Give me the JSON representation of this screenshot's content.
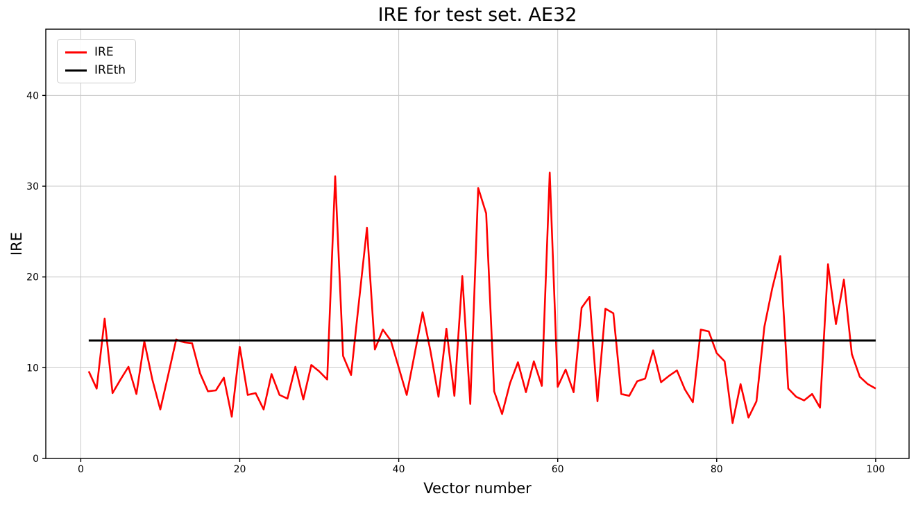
{
  "chart_data": {
    "type": "line",
    "title": "IRE for test set. AE32",
    "xlabel": "Vector number",
    "ylabel": "IRE",
    "xlim": [
      -4.4,
      104.2
    ],
    "ylim": [
      0,
      47.3
    ],
    "xticks": [
      0,
      20,
      40,
      60,
      80,
      100
    ],
    "yticks": [
      0,
      10,
      20,
      30,
      40
    ],
    "grid": true,
    "grid_color": "#c8c8c8",
    "axis_color": "#000000",
    "background": "#ffffff",
    "legend": {
      "position": "upper-left",
      "entries": [
        {
          "label": "IRE",
          "color": "#ff0000",
          "line_width": 3
        },
        {
          "label": "IREth",
          "color": "#000000",
          "line_width": 3
        }
      ]
    },
    "series": [
      {
        "name": "IRE",
        "type": "line",
        "color": "#ff0000",
        "line_width": 2.6,
        "x_start": 1,
        "x_step": 1,
        "values": [
          9.6,
          7.7,
          15.4,
          7.2,
          8.7,
          10.1,
          7.1,
          12.9,
          8.7,
          5.4,
          9.2,
          13.1,
          12.8,
          12.7,
          9.4,
          7.4,
          7.5,
          8.9,
          4.6,
          12.3,
          7.0,
          7.2,
          5.4,
          9.3,
          7.0,
          6.6,
          10.1,
          6.5,
          10.3,
          9.6,
          8.7,
          31.1,
          11.3,
          9.2,
          17.3,
          25.4,
          12.0,
          14.2,
          13.0,
          10.0,
          7.0,
          11.5,
          16.1,
          11.8,
          6.8,
          14.3,
          6.9,
          20.1,
          6.0,
          29.8,
          27.0,
          7.4,
          4.9,
          8.3,
          10.6,
          7.3,
          10.7,
          8.0,
          31.5,
          7.9,
          9.8,
          7.3,
          16.6,
          17.8,
          6.3,
          16.5,
          16.0,
          7.1,
          6.9,
          8.5,
          8.8,
          11.9,
          8.4,
          9.1,
          9.7,
          7.6,
          6.2,
          14.2,
          14.0,
          11.6,
          10.7,
          3.9,
          8.2,
          4.5,
          6.3,
          14.5,
          18.8,
          22.3,
          7.7,
          6.8,
          6.4,
          7.1,
          5.6,
          21.4,
          14.8,
          19.7,
          11.5,
          9.0,
          8.2,
          7.7
        ]
      },
      {
        "name": "IREth",
        "type": "hline",
        "color": "#000000",
        "line_width": 3,
        "y": 13,
        "x_range": [
          1,
          100
        ]
      }
    ]
  }
}
